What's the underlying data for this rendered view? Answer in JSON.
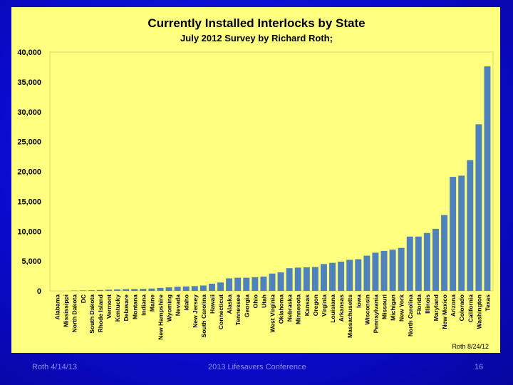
{
  "footer": {
    "left": "Roth 4/14/13",
    "center": "2013 Lifesavers Conference",
    "page": "16"
  },
  "colors": {
    "bar": "#4f81bd",
    "panel": "#ffff80",
    "background": "#0b0bd6"
  },
  "chart_data": {
    "type": "bar",
    "title": "Currently Installed Interlocks by State",
    "subtitle": "July 2012  Survey by Richard Roth;",
    "annotation": "Roth 8/24/12",
    "xlabel": "",
    "ylabel": "",
    "ylim": [
      0,
      40000
    ],
    "yticks": [
      "0",
      "5,000",
      "10,000",
      "15,000",
      "20,000",
      "25,000",
      "30,000",
      "35,000",
      "40,000"
    ],
    "grid": false,
    "categories": [
      "Alabama",
      "Mississippi",
      "North Dakota",
      "DC",
      "South Dakota",
      "Rhode Island",
      "Vermont",
      "Kentucky",
      "Delaware",
      "Montana",
      "Indiana",
      "Maine",
      "New Hampshire",
      "Wyoming",
      "Nevada",
      "Idaho",
      "New Jersey",
      "South Carolina",
      "Hawaii",
      "Connecticut",
      "Alaska",
      "Tennessee",
      "Georgia",
      "Ohio",
      "Utah",
      "West Virginia",
      "Oklahoma",
      "Nebraska",
      "Minnesota",
      "Kansas",
      "Oregon",
      "Virginia",
      "Louisiana",
      "Arkansas",
      "Massachusetts",
      "Iowa",
      "Wisconsin",
      "Pennsylvania",
      "Missouri",
      "Michigan",
      "New York",
      "North Carolina",
      "Florida",
      "Illinois",
      "Maryland",
      "New Mexico",
      "Arizona",
      "Colorado",
      "California",
      "Washington",
      "Texas"
    ],
    "values": [
      0,
      0,
      50,
      80,
      100,
      150,
      200,
      250,
      300,
      320,
      350,
      400,
      500,
      600,
      700,
      750,
      800,
      900,
      1200,
      1400,
      2100,
      2200,
      2200,
      2300,
      2400,
      2900,
      3100,
      3800,
      3900,
      3950,
      4000,
      4500,
      4700,
      4900,
      5200,
      5300,
      5900,
      6400,
      6700,
      6900,
      7200,
      9100,
      9100,
      9700,
      10400,
      12700,
      19100,
      19300,
      21900,
      27900,
      37600
    ]
  }
}
